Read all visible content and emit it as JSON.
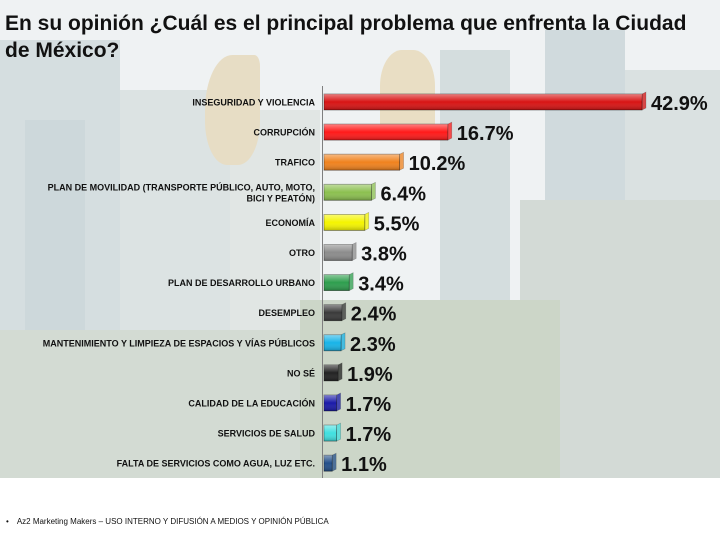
{
  "title": "En su opinión ¿Cuál es el principal problema que enfrenta la Ciudad de México?",
  "footer": "Az2 Marketing Makers – USO INTERNO Y DIFUSIÓN A MEDIOS Y OPINIÓN PÚBLICA",
  "chart_data": {
    "type": "bar",
    "orientation": "horizontal",
    "categories": [
      "INSEGURIDAD Y VIOLENCIA",
      "CORRUPCIÓN",
      "TRAFICO",
      "PLAN DE MOVILIDAD (TRANSPORTE PÚBLICO, AUTO, MOTO, BICI Y PEATÓN)",
      "ECONOMÍA",
      "OTRO",
      "PLAN DE DESARROLLO URBANO",
      "DESEMPLEO",
      "MANTENIMIENTO Y LIMPIEZA DE ESPACIOS Y VÍAS PÚBLICOS",
      "NO SÉ",
      "CALIDAD DE LA EDUCACIÓN",
      "SERVICIOS DE SALUD",
      "FALTA DE SERVICIOS COMO AGUA, LUZ ETC."
    ],
    "values": [
      42.9,
      16.7,
      10.2,
      6.4,
      5.5,
      3.8,
      3.4,
      2.4,
      2.3,
      1.9,
      1.7,
      1.7,
      1.1
    ],
    "value_labels": [
      "42.9%",
      "16.7%",
      "10.2%",
      "6.4%",
      "5.5%",
      "3.8%",
      "3.4%",
      "2.4%",
      "2.3%",
      "1.9%",
      "1.7%",
      "1.7%",
      "1.1%"
    ],
    "colors": [
      "#d81414",
      "#ff1a1a",
      "#f0821e",
      "#8cc050",
      "#f5f500",
      "#8c8c8c",
      "#2e9e4e",
      "#3a3a3a",
      "#18b4e8",
      "#222222",
      "#1a1aa8",
      "#40e0e0",
      "#24508a"
    ],
    "xlim": [
      0,
      43
    ],
    "grid": false,
    "legend": "none"
  }
}
